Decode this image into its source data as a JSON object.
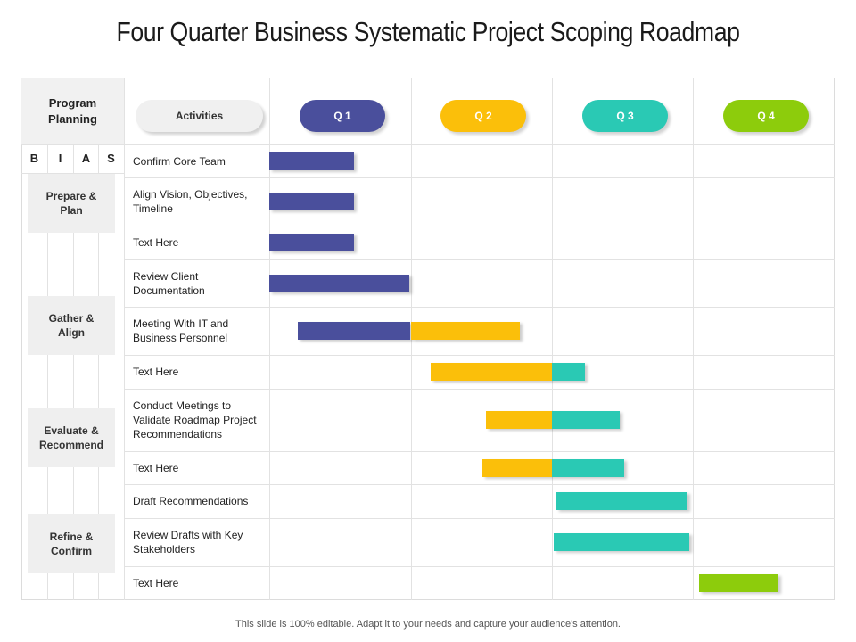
{
  "title": "Four Quarter Business Systematic Project Scoping Roadmap",
  "program_planning": "Program Planning",
  "activities_header": "Activities",
  "bias": [
    "B",
    "I",
    "A",
    "S"
  ],
  "quarters": [
    {
      "label": "Q 1",
      "color": "#4a4f9c",
      "text_color": "#ffffff"
    },
    {
      "label": "Q 2",
      "color": "#fbbf0a",
      "text_color": "#ffffff"
    },
    {
      "label": "Q 3",
      "color": "#2ac9b4",
      "text_color": "#ffffff"
    },
    {
      "label": "Q 4",
      "color": "#8dcc0c",
      "text_color": "#ffffff"
    }
  ],
  "activities_pill_color": "#f0f0f0",
  "phases": [
    {
      "label": "Prepare & Plan"
    },
    {
      "label": "Gather & Align"
    },
    {
      "label": "Evaluate & Recommend"
    },
    {
      "label": "Refine & Confirm"
    }
  ],
  "activities": [
    {
      "label": "Confirm Core Team"
    },
    {
      "label": "Align Vision, Objectives, Timeline"
    },
    {
      "label": "Text Here"
    },
    {
      "label": "Review Client Documentation"
    },
    {
      "label": "Meeting With IT and Business Personnel"
    },
    {
      "label": "Text Here"
    },
    {
      "label": "Conduct Meetings to Validate Roadmap Project Recommendations"
    },
    {
      "label": "Text Here"
    },
    {
      "label": "Draft Recommendations"
    },
    {
      "label": "Review Drafts with Key Stakeholders"
    },
    {
      "label": "Text Here"
    }
  ],
  "chart_data": {
    "type": "gantt",
    "time_unit": "quarter",
    "x_range": [
      0,
      4
    ],
    "tasks": [
      {
        "activity": "Confirm Core Team",
        "segments": [
          {
            "start": 0.0,
            "end": 0.6,
            "quarter": "Q 1"
          }
        ]
      },
      {
        "activity": "Align Vision, Objectives, Timeline",
        "segments": [
          {
            "start": 0.0,
            "end": 0.6,
            "quarter": "Q 1"
          }
        ]
      },
      {
        "activity": "Text Here",
        "segments": [
          {
            "start": 0.0,
            "end": 0.6,
            "quarter": "Q 1"
          }
        ]
      },
      {
        "activity": "Review Client Documentation",
        "segments": [
          {
            "start": 0.0,
            "end": 0.99,
            "quarter": "Q 1"
          }
        ]
      },
      {
        "activity": "Meeting With IT and Business Personnel",
        "segments": [
          {
            "start": 0.2,
            "end": 1.0,
            "quarter": "Q 1"
          },
          {
            "start": 1.0,
            "end": 1.77,
            "quarter": "Q 2"
          }
        ]
      },
      {
        "activity": "Text Here",
        "segments": [
          {
            "start": 1.14,
            "end": 2.0,
            "quarter": "Q 2"
          },
          {
            "start": 2.0,
            "end": 2.23,
            "quarter": "Q 3"
          }
        ]
      },
      {
        "activity": "Conduct Meetings to Validate Roadmap Project Recommendations",
        "segments": [
          {
            "start": 1.53,
            "end": 2.0,
            "quarter": "Q 2"
          },
          {
            "start": 2.0,
            "end": 2.48,
            "quarter": "Q 3"
          }
        ]
      },
      {
        "activity": "Text Here",
        "segments": [
          {
            "start": 1.51,
            "end": 2.0,
            "quarter": "Q 2"
          },
          {
            "start": 2.0,
            "end": 2.51,
            "quarter": "Q 3"
          }
        ]
      },
      {
        "activity": "Draft Recommendations",
        "segments": [
          {
            "start": 2.03,
            "end": 2.96,
            "quarter": "Q 3"
          }
        ]
      },
      {
        "activity": "Review Drafts with Key Stakeholders",
        "segments": [
          {
            "start": 2.01,
            "end": 2.97,
            "quarter": "Q 3"
          }
        ]
      },
      {
        "activity": "Text Here",
        "segments": [
          {
            "start": 3.04,
            "end": 3.6,
            "quarter": "Q 4"
          }
        ]
      }
    ]
  },
  "footer": "This slide is 100% editable. Adapt it to your needs and capture your audience's attention."
}
